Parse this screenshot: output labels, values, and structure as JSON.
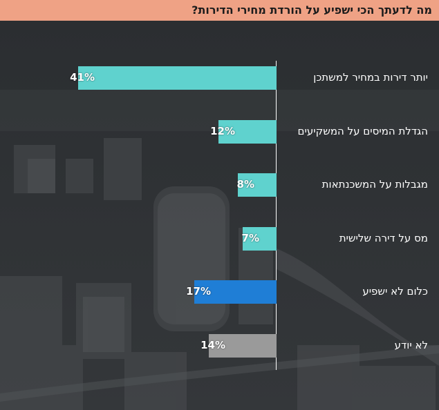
{
  "title": "מה לדעתך הכי ישפיע על הורדת מחירי הדירות?",
  "colors": {
    "title_bg": "#efa285",
    "teal": "#5fd2ce",
    "blue": "#1f7ed6",
    "gray": "#9a9a9a"
  },
  "chart_data": {
    "type": "bar",
    "orientation": "horizontal",
    "title": "מה לדעתך הכי ישפיע על הורדת מחירי הדירות?",
    "categories": [
      "יותר דירות במחיר למשתכן",
      "הגדלת המיסים על המשקיעים",
      "מגבלות על המשכנתאות",
      "מס על דירה שלישית",
      "כלום לא ישפיע",
      "לא יודע"
    ],
    "values": [
      41,
      12,
      8,
      7,
      17,
      14
    ],
    "value_labels": [
      "41%",
      "12%",
      "8%",
      "7%",
      "17%",
      "14%"
    ],
    "bar_colors": [
      "#5fd2ce",
      "#5fd2ce",
      "#5fd2ce",
      "#5fd2ce",
      "#1f7ed6",
      "#9a9a9a"
    ],
    "unit": "%",
    "grid": false,
    "legend": "none"
  }
}
